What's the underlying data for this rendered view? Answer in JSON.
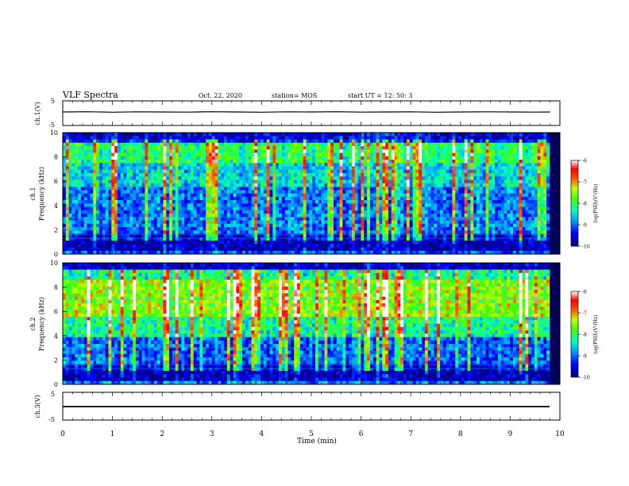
{
  "header": {
    "title": "VLF Spectra",
    "date": "Oct. 22, 2020",
    "station": "station= MOS",
    "start": "start  UT =   12: 50: 3"
  },
  "chart_data": [
    {
      "type": "line",
      "name": "ch1-waveform",
      "ylabel": "ch.1(V)",
      "ylim": [
        -5,
        5
      ],
      "yticks": [
        "5",
        "-5"
      ],
      "xlim": [
        0,
        10
      ],
      "x": [
        0,
        0.5,
        1,
        1.5,
        2,
        2.5,
        3,
        3.5,
        4,
        4.5,
        5,
        5.5,
        6,
        6.5,
        7,
        7.5,
        8,
        8.5,
        9,
        9.5,
        9.8
      ],
      "y": [
        0,
        0.1,
        -0.1,
        0.05,
        0,
        -0.05,
        0.1,
        0,
        -0.1,
        0.05,
        0,
        0.1,
        -0.05,
        0,
        0.05,
        -0.1,
        0,
        0.05,
        0,
        -0.05,
        0
      ]
    },
    {
      "type": "heatmap",
      "name": "ch1-spectrogram",
      "ylabel": "ch.1\nFrequency (kHz)",
      "ylim": [
        0,
        10
      ],
      "yticks": [
        "0",
        "2",
        "4",
        "6",
        "8",
        "10"
      ],
      "xlim": [
        0,
        10
      ],
      "colorbar": {
        "label": "log(PSD)(V²/Hz)",
        "range": [
          -10,
          -6
        ],
        "ticks": [
          "-6",
          "-7",
          "-8",
          "-9",
          "-10"
        ]
      }
    },
    {
      "type": "heatmap",
      "name": "ch2-spectrogram",
      "ylabel": "ch.2\nFrequency (kHz)",
      "ylim": [
        0,
        10
      ],
      "yticks": [
        "0",
        "2",
        "4",
        "6",
        "8",
        "10"
      ],
      "xlim": [
        0,
        10
      ],
      "colorbar": {
        "label": "log(PSD)(V²/Hz)",
        "range": [
          -10,
          -6
        ],
        "ticks": [
          "-6",
          "-7",
          "-8",
          "-9",
          "-10"
        ]
      }
    },
    {
      "type": "line",
      "name": "ch3-waveform",
      "ylabel": "ch.3(V)",
      "ylim": [
        -5,
        5
      ],
      "yticks": [
        "5",
        "-5"
      ],
      "xlim": [
        0,
        10
      ],
      "x": [
        0,
        9.8
      ],
      "y": [
        0,
        0
      ]
    }
  ],
  "x_axis": {
    "label": "Time  (min)",
    "ticks": [
      "0",
      "1",
      "2",
      "3",
      "4",
      "5",
      "6",
      "7",
      "8",
      "9",
      "10"
    ]
  },
  "colors": {
    "background": "#ffffff",
    "axis": "#000000",
    "colormap": [
      "#000080",
      "#0000ff",
      "#0080ff",
      "#00ffff",
      "#00ff80",
      "#80ff00",
      "#ffff00",
      "#ff8000",
      "#ff0000",
      "#ffffff"
    ]
  }
}
